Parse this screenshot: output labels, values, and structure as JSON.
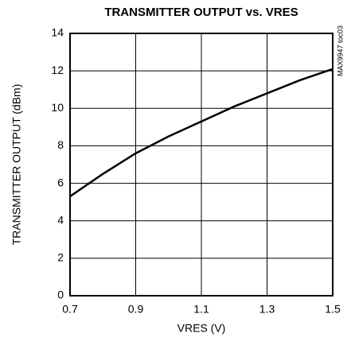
{
  "chart_data": {
    "type": "line",
    "title": "TRANSMITTER OUTPUT vs. VRES",
    "xlabel": "VRES (V)",
    "ylabel": "TRANSMITTER OUTPUT (dBm)",
    "annotation": "MAX9947 toc03",
    "x": [
      0.7,
      0.8,
      0.9,
      1.0,
      1.1,
      1.2,
      1.3,
      1.4,
      1.5
    ],
    "series": [
      {
        "name": "TRANSMITTER OUTPUT",
        "color": "#000000",
        "values": [
          5.3,
          6.5,
          7.6,
          8.5,
          9.3,
          10.1,
          10.8,
          11.5,
          12.1
        ]
      }
    ],
    "xlim": [
      0.7,
      1.5
    ],
    "xticks": [
      0.7,
      0.9,
      1.1,
      1.3,
      1.5
    ],
    "ylim": [
      0,
      14
    ],
    "yticks": [
      0,
      2,
      4,
      6,
      8,
      10,
      12,
      14
    ],
    "grid": true
  }
}
